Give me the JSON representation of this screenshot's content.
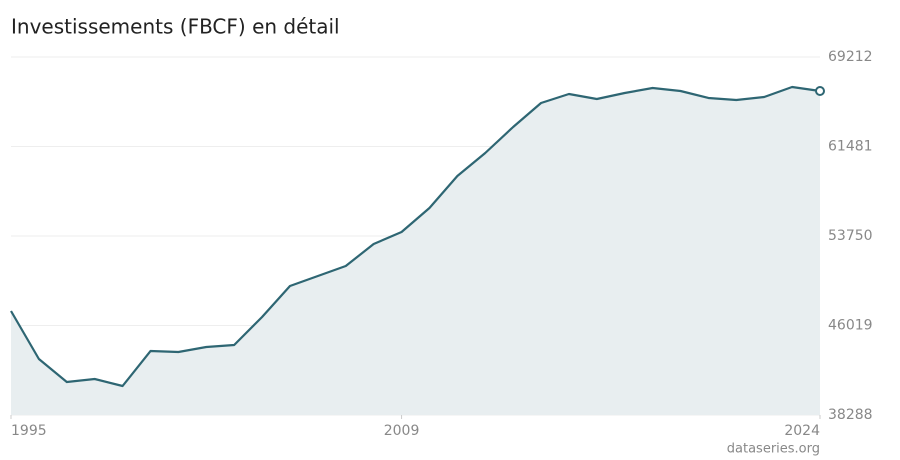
{
  "chart_data": {
    "type": "line",
    "title": "Investissements (FBCF) en détail",
    "source": "dataseries.org",
    "x": [
      1995,
      1996,
      1997,
      1998,
      1999,
      2000,
      2001,
      2002,
      2003,
      2004,
      2005,
      2006,
      2007,
      2008,
      2009,
      2010,
      2011,
      2012,
      2013,
      2014,
      2015,
      2016,
      2017,
      2018,
      2019,
      2020,
      2021,
      2022,
      2023,
      2024
    ],
    "values": [
      47272,
      43125,
      41139,
      41398,
      40793,
      43816,
      43730,
      44162,
      44335,
      46753,
      49431,
      50295,
      51159,
      53059,
      54095,
      56169,
      58933,
      60920,
      63166,
      65239,
      66016,
      65584,
      66102,
      66534,
      66275,
      65671,
      65498,
      65757,
      66620,
      66275
    ],
    "color": "#2e6673",
    "area_color": "#e8eef0",
    "xlim": [
      1995,
      2024
    ],
    "xticks": [
      1995,
      2009,
      2024
    ],
    "ylim": [
      38288,
      69212
    ],
    "yticks": [
      38288,
      46019,
      53750,
      61481,
      69212
    ],
    "grid": true
  }
}
